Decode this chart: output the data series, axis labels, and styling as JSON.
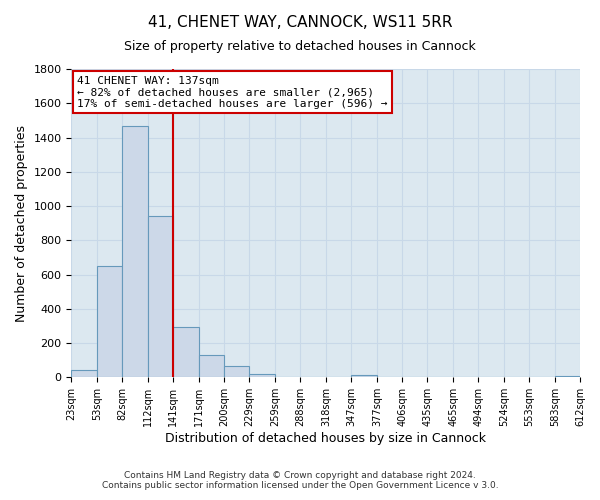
{
  "title": "41, CHENET WAY, CANNOCK, WS11 5RR",
  "subtitle": "Size of property relative to detached houses in Cannock",
  "xlabel": "Distribution of detached houses by size in Cannock",
  "ylabel": "Number of detached properties",
  "bar_edges": [
    23,
    53,
    82,
    112,
    141,
    171,
    200,
    229,
    259,
    288,
    318,
    347,
    377,
    406,
    435,
    465,
    494,
    524,
    553,
    583,
    612
  ],
  "bar_heights": [
    40,
    650,
    1470,
    940,
    295,
    130,
    65,
    22,
    0,
    0,
    0,
    15,
    0,
    0,
    0,
    0,
    0,
    0,
    0,
    10
  ],
  "bar_color": "#ccd8e8",
  "bar_edgecolor": "#6699bb",
  "property_line_x": 141,
  "annotation_title": "41 CHENET WAY: 137sqm",
  "annotation_line1": "← 82% of detached houses are smaller (2,965)",
  "annotation_line2": "17% of semi-detached houses are larger (596) →",
  "annotation_box_facecolor": "#ffffff",
  "annotation_box_edgecolor": "#cc0000",
  "red_line_color": "#cc0000",
  "grid_color": "#c8d8e8",
  "plot_bg_color": "#dce8f0",
  "fig_bg_color": "#ffffff",
  "ylim": [
    0,
    1800
  ],
  "yticks": [
    0,
    200,
    400,
    600,
    800,
    1000,
    1200,
    1400,
    1600,
    1800
  ],
  "tick_labels": [
    "23sqm",
    "53sqm",
    "82sqm",
    "112sqm",
    "141sqm",
    "171sqm",
    "200sqm",
    "229sqm",
    "259sqm",
    "288sqm",
    "318sqm",
    "347sqm",
    "377sqm",
    "406sqm",
    "435sqm",
    "465sqm",
    "494sqm",
    "524sqm",
    "553sqm",
    "583sqm",
    "612sqm"
  ],
  "footer1": "Contains HM Land Registry data © Crown copyright and database right 2024.",
  "footer2": "Contains public sector information licensed under the Open Government Licence v 3.0."
}
